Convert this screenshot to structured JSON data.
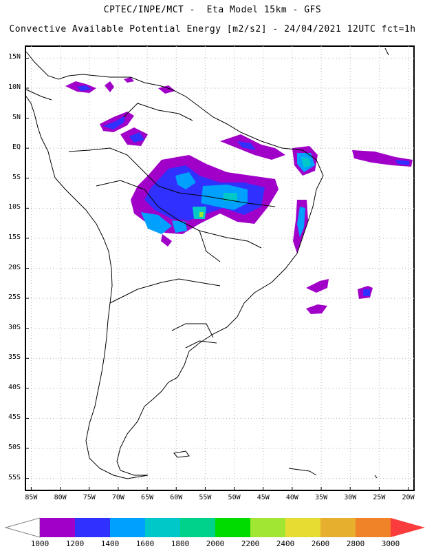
{
  "header": {
    "title_line1": "CPTEC/INPE/MCT -  Eta Model 15km - GFS",
    "title_line2": "Convective Available Potential Energy [m2/s2] - 24/04/2021 12UTC fct=1h"
  },
  "map": {
    "lon_range": [
      -86,
      -19
    ],
    "lat_range": [
      -57,
      17
    ],
    "lat_ticks": [
      "15N",
      "10N",
      "5N",
      "EQ",
      "5S",
      "10S",
      "15S",
      "20S",
      "25S",
      "30S",
      "35S",
      "40S",
      "45S",
      "50S",
      "55S"
    ],
    "lon_ticks": [
      "85W",
      "80W",
      "75W",
      "70W",
      "65W",
      "60W",
      "55W",
      "50W",
      "45W",
      "40W",
      "35W",
      "30W",
      "25W",
      "20W"
    ],
    "gridlines": "dotted"
  },
  "colorbar": {
    "labels": [
      "1000",
      "1200",
      "1400",
      "1600",
      "1800",
      "2000",
      "2200",
      "2400",
      "2600",
      "2800",
      "3000"
    ],
    "colors": [
      "#a000c8",
      "#3030ff",
      "#00a0ff",
      "#00c8c8",
      "#00d28c",
      "#00dc00",
      "#a0e632",
      "#e6dc32",
      "#e6af2d",
      "#f08228",
      "#fa3c3c"
    ]
  }
}
